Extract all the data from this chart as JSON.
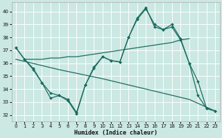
{
  "background_color": "#cbe8e3",
  "grid_color": "#ffffff",
  "line_color": "#1a6b5e",
  "xlabel": "Humidex (Indice chaleur)",
  "ylim": [
    31.5,
    40.7
  ],
  "xlim": [
    -0.5,
    23.5
  ],
  "yticks": [
    32,
    33,
    34,
    35,
    36,
    37,
    38,
    39,
    40
  ],
  "xticks": [
    0,
    1,
    2,
    3,
    4,
    5,
    6,
    7,
    8,
    9,
    10,
    11,
    12,
    13,
    14,
    15,
    16,
    17,
    18,
    19,
    20,
    21,
    22,
    23
  ],
  "series": [
    {
      "x": [
        0,
        1,
        2,
        3,
        4,
        5,
        6,
        7,
        8,
        9,
        10,
        11,
        12,
        13,
        14,
        15,
        16,
        17,
        18,
        19,
        20,
        21,
        22,
        23
      ],
      "y": [
        37.2,
        36.3,
        35.5,
        34.5,
        33.3,
        33.5,
        33.1,
        32.1,
        34.3,
        35.6,
        36.5,
        36.2,
        36.1,
        38.0,
        39.4,
        40.2,
        39.0,
        38.6,
        39.0,
        37.9,
        36.0,
        33.5,
        32.5,
        32.3
      ],
      "marker": true
    },
    {
      "x": [
        1,
        2,
        3,
        4,
        5,
        6,
        7,
        8,
        9,
        10,
        11,
        12,
        13,
        14,
        15,
        16,
        17,
        18,
        19,
        20
      ],
      "y": [
        36.3,
        36.3,
        36.3,
        36.4,
        36.4,
        36.5,
        36.5,
        36.6,
        36.7,
        36.8,
        36.9,
        37.0,
        37.1,
        37.2,
        37.3,
        37.4,
        37.5,
        37.6,
        37.8,
        37.9
      ],
      "marker": false
    },
    {
      "x": [
        0,
        5,
        10,
        15,
        20,
        23
      ],
      "y": [
        36.3,
        35.5,
        34.8,
        34.0,
        33.2,
        32.3
      ],
      "marker": false
    },
    {
      "x": [
        0,
        1,
        2,
        3,
        4,
        5,
        6,
        7,
        8,
        9,
        10,
        11,
        12,
        13,
        14,
        15,
        16,
        17,
        18,
        19,
        20,
        21,
        22,
        23
      ],
      "y": [
        37.2,
        36.3,
        35.6,
        34.5,
        33.7,
        33.5,
        33.2,
        32.2,
        34.3,
        35.7,
        36.5,
        36.2,
        36.1,
        38.0,
        39.5,
        40.3,
        38.8,
        38.6,
        38.8,
        37.8,
        36.0,
        34.6,
        32.5,
        32.3
      ],
      "marker": true
    }
  ]
}
